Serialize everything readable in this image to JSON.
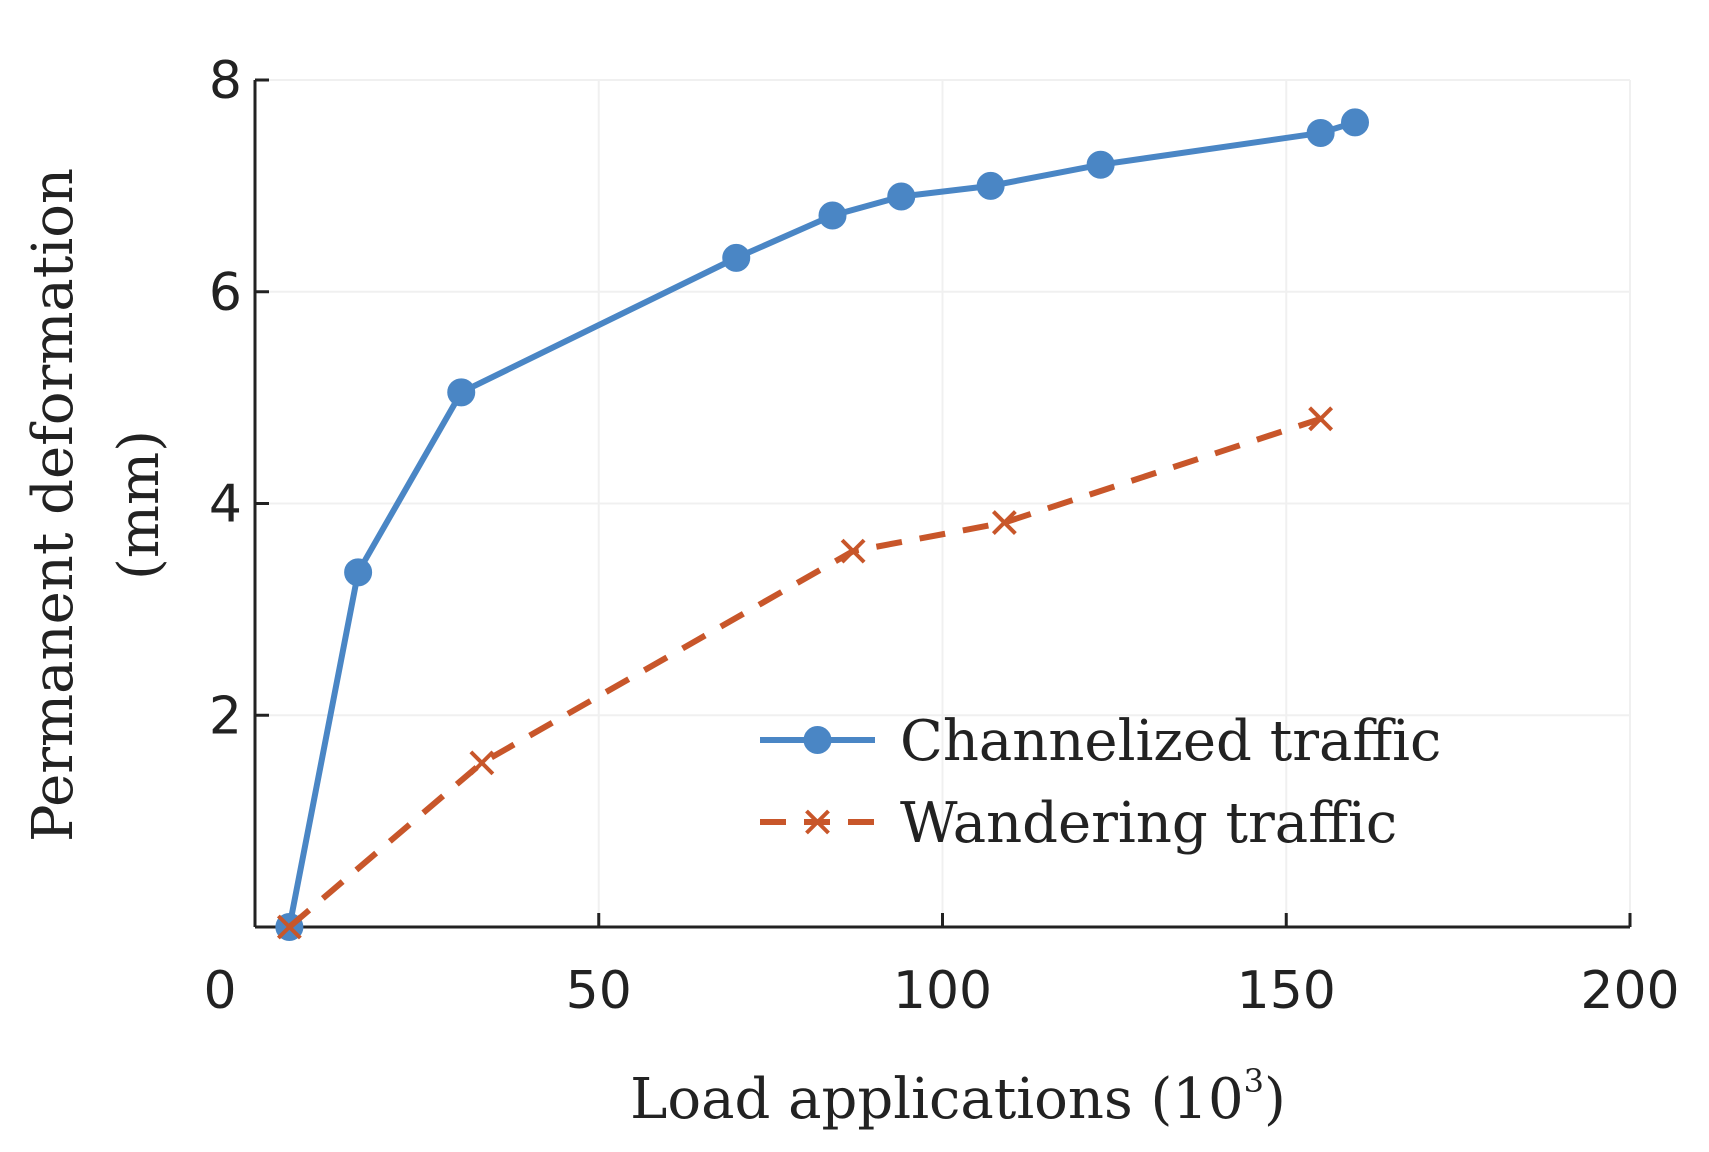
{
  "chart_data": {
    "type": "line",
    "xlabel": "Load applications (10",
    "xlabel_sup": "3",
    "xlabel_close": ")",
    "ylabel_line1": "Permanent deformation",
    "ylabel_line2": "(mm)",
    "xlim": [
      0,
      200
    ],
    "ylim": [
      0,
      8
    ],
    "xticks": [
      0,
      50,
      100,
      150,
      200
    ],
    "yticks": [
      2,
      4,
      6,
      8
    ],
    "grid": true,
    "legend_position": "bottom-right",
    "series": [
      {
        "name": "Channelized traffic",
        "color": "#4a86c5",
        "line_style": "solid",
        "marker": "circle",
        "x": [
          5,
          15,
          30,
          70,
          84,
          94,
          107,
          123,
          155,
          160
        ],
        "y": [
          0,
          3.35,
          5.05,
          6.32,
          6.72,
          6.9,
          7.0,
          7.2,
          7.5,
          7.6
        ]
      },
      {
        "name": "Wandering traffic",
        "color": "#c8562a",
        "line_style": "dashed",
        "marker": "x",
        "x": [
          5,
          33,
          87,
          109,
          155
        ],
        "y": [
          0,
          1.55,
          3.55,
          3.82,
          4.8
        ]
      }
    ]
  }
}
